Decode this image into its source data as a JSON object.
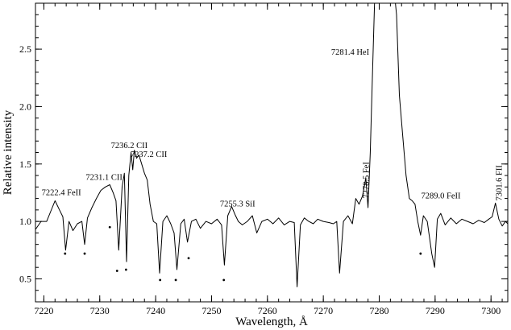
{
  "chart_data": {
    "type": "line",
    "xlabel": "Wavelength, Å",
    "ylabel": "Relative intensity",
    "xlim": [
      7218.5,
      7303
    ],
    "ylim": [
      0.3,
      2.9
    ],
    "xticks": [
      7220,
      7230,
      7240,
      7250,
      7260,
      7270,
      7280,
      7290,
      7300
    ],
    "yticks": [
      0.5,
      1.0,
      1.5,
      2.0,
      2.5
    ],
    "ytick_labels": [
      "0.5",
      "1.0",
      "1.5",
      "2.0",
      "2.5"
    ],
    "minor_x_step": 2,
    "minor_y_step": 0.1,
    "grid": false,
    "line_color": "#000000",
    "series": [
      {
        "x": [
          7218.5,
          7219.5,
          7220.5,
          7221.5,
          7222.0,
          7222.8,
          7223.4,
          7223.9,
          7224.5,
          7225.2,
          7226.0,
          7226.8,
          7227.3,
          7227.8,
          7228.6,
          7229.4,
          7230.2,
          7231.0,
          7231.8,
          7232.4,
          7232.9,
          7233.4,
          7234.0,
          7234.4,
          7234.8,
          7235.2,
          7235.6,
          7235.9,
          7236.2,
          7236.6,
          7237.0,
          7237.5,
          7238.0,
          7238.5,
          7239.0,
          7239.6,
          7240.2,
          7240.7,
          7241.3,
          7242.0,
          7242.7,
          7243.3,
          7243.8,
          7244.5,
          7245.1,
          7245.7,
          7246.4,
          7247.2,
          7248.0,
          7249.0,
          7250.0,
          7251.0,
          7251.8,
          7252.3,
          7252.9,
          7253.6,
          7254.2,
          7254.8,
          7255.5,
          7256.4,
          7257.3,
          7258.1,
          7259.0,
          7260.0,
          7261.0,
          7262.0,
          7263.0,
          7264.0,
          7264.8,
          7265.3,
          7265.9,
          7266.6,
          7267.4,
          7268.2,
          7269.0,
          7270.0,
          7271.0,
          7271.8,
          7272.4,
          7272.9,
          7273.6,
          7274.4,
          7275.2,
          7275.8,
          7276.4,
          7277.0,
          7277.6,
          7278.0,
          7278.4,
          7278.8,
          7279.2,
          7279.7,
          7280.2,
          7280.8,
          7281.4,
          7282.0,
          7282.6,
          7283.1,
          7283.6,
          7284.2,
          7284.8,
          7285.4,
          7285.9,
          7286.4,
          7286.9,
          7287.4,
          7287.9,
          7288.6,
          7289.4,
          7289.9,
          7290.4,
          7291.0,
          7291.8,
          7292.8,
          7293.8,
          7294.8,
          7295.8,
          7296.8,
          7297.8,
          7298.8,
          7299.6,
          7300.2,
          7300.8,
          7301.4,
          7302.0,
          7302.6,
          7303.0
        ],
        "y": [
          0.93,
          1.0,
          1.0,
          1.12,
          1.18,
          1.1,
          1.04,
          0.75,
          1.0,
          0.92,
          0.98,
          1.0,
          0.8,
          1.03,
          1.12,
          1.2,
          1.27,
          1.3,
          1.32,
          1.25,
          1.18,
          0.75,
          1.3,
          1.42,
          0.65,
          1.4,
          1.6,
          1.45,
          1.62,
          1.55,
          1.58,
          1.5,
          1.42,
          1.36,
          1.15,
          1.0,
          0.98,
          0.55,
          1.0,
          1.05,
          0.98,
          0.9,
          0.58,
          0.98,
          1.02,
          0.82,
          1.0,
          1.02,
          0.94,
          1.0,
          0.98,
          1.02,
          0.97,
          0.62,
          1.05,
          1.13,
          1.06,
          1.0,
          0.97,
          1.0,
          1.05,
          0.9,
          1.0,
          1.02,
          0.98,
          1.03,
          0.97,
          1.0,
          0.99,
          0.43,
          0.97,
          1.03,
          1.0,
          0.98,
          1.02,
          1.0,
          0.99,
          0.98,
          1.0,
          0.55,
          1.0,
          1.05,
          0.98,
          1.2,
          1.15,
          1.22,
          1.38,
          1.12,
          1.6,
          2.3,
          2.95,
          3.05,
          3.05,
          3.05,
          3.05,
          3.05,
          3.05,
          2.8,
          2.1,
          1.75,
          1.4,
          1.2,
          1.18,
          1.15,
          1.0,
          0.88,
          1.05,
          1.0,
          0.72,
          0.6,
          1.02,
          1.07,
          0.97,
          1.03,
          0.98,
          1.02,
          1.0,
          0.98,
          1.01,
          0.99,
          1.02,
          1.04,
          1.16,
          1.02,
          0.96,
          1.0,
          0.98
        ]
      }
    ],
    "dots": [
      {
        "x": 7223.8,
        "y": 0.72
      },
      {
        "x": 7227.3,
        "y": 0.72
      },
      {
        "x": 7231.8,
        "y": 0.95
      },
      {
        "x": 7233.1,
        "y": 0.57
      },
      {
        "x": 7234.7,
        "y": 0.58
      },
      {
        "x": 7240.8,
        "y": 0.49
      },
      {
        "x": 7243.6,
        "y": 0.49
      },
      {
        "x": 7245.9,
        "y": 0.68
      },
      {
        "x": 7252.2,
        "y": 0.49
      },
      {
        "x": 7287.4,
        "y": 0.72
      }
    ],
    "annotations": [
      {
        "text": "7222.4 FeII",
        "x": 7219.6,
        "y": 1.23,
        "rotate": 0
      },
      {
        "text": "7231.1 CII",
        "x": 7227.5,
        "y": 1.36,
        "rotate": 0
      },
      {
        "text": "7236.2 CII",
        "x": 7232.0,
        "y": 1.64,
        "rotate": 0
      },
      {
        "text": "7237.2 CII",
        "x": 7235.5,
        "y": 1.56,
        "rotate": 0
      },
      {
        "text": "7255.3 SiI",
        "x": 7251.5,
        "y": 1.13,
        "rotate": 0
      },
      {
        "text": "7281.4 HeI",
        "x": 7271.4,
        "y": 2.45,
        "rotate": 0
      },
      {
        "text": "7278.5 FeI",
        "x": 7278.1,
        "y": 1.2,
        "rotate": -90
      },
      {
        "text": "7289.0 FeII",
        "x": 7287.5,
        "y": 1.2,
        "rotate": 0
      },
      {
        "text": "7301.6 FII",
        "x": 7301.9,
        "y": 1.18,
        "rotate": -90
      }
    ]
  }
}
